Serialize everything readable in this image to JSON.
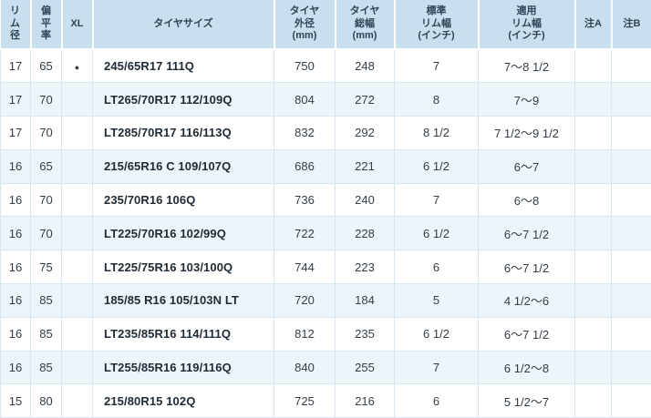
{
  "colors": {
    "header_bg": "#c8dff0",
    "stripe_bg": "#edf5fa",
    "border": "#d7e7f2",
    "header_text": "#2e4458",
    "body_text": "#333d47",
    "size_text": "#1f2a36"
  },
  "table": {
    "columns": [
      {
        "key": "rim",
        "label": "リ\nム\n径"
      },
      {
        "key": "aspect",
        "label": "偏\n平\n率"
      },
      {
        "key": "xl",
        "label": "XL"
      },
      {
        "key": "size",
        "label": "タイヤサイズ"
      },
      {
        "key": "outer_dia",
        "label": "タイヤ\n外径\n(mm)"
      },
      {
        "key": "total_width",
        "label": "タイヤ\n総幅\n(mm)"
      },
      {
        "key": "std_rim",
        "label": "標準\nリム幅\n(インチ)"
      },
      {
        "key": "app_rim",
        "label": "適用\nリム幅\n(インチ)"
      },
      {
        "key": "note_a",
        "label": "注A"
      },
      {
        "key": "note_b",
        "label": "注B"
      }
    ],
    "rows": [
      {
        "rim": "17",
        "aspect": "65",
        "xl": "●",
        "size": "245/65R17 111Q",
        "outer_dia": "750",
        "total_width": "248",
        "std_rim": "7",
        "app_rim": "7〜8 1/2",
        "note_a": "",
        "note_b": ""
      },
      {
        "rim": "17",
        "aspect": "70",
        "xl": "",
        "size": "LT265/70R17 112/109Q",
        "outer_dia": "804",
        "total_width": "272",
        "std_rim": "8",
        "app_rim": "7〜9",
        "note_a": "",
        "note_b": ""
      },
      {
        "rim": "17",
        "aspect": "70",
        "xl": "",
        "size": "LT285/70R17 116/113Q",
        "outer_dia": "832",
        "total_width": "292",
        "std_rim": "8 1/2",
        "app_rim": "7 1/2〜9 1/2",
        "note_a": "",
        "note_b": ""
      },
      {
        "rim": "16",
        "aspect": "65",
        "xl": "",
        "size": "215/65R16 C 109/107Q",
        "outer_dia": "686",
        "total_width": "221",
        "std_rim": "6 1/2",
        "app_rim": "6〜7",
        "note_a": "",
        "note_b": ""
      },
      {
        "rim": "16",
        "aspect": "70",
        "xl": "",
        "size": "235/70R16 106Q",
        "outer_dia": "736",
        "total_width": "240",
        "std_rim": "7",
        "app_rim": "6〜8",
        "note_a": "",
        "note_b": ""
      },
      {
        "rim": "16",
        "aspect": "70",
        "xl": "",
        "size": "LT225/70R16 102/99Q",
        "outer_dia": "722",
        "total_width": "228",
        "std_rim": "6 1/2",
        "app_rim": "6〜7 1/2",
        "note_a": "",
        "note_b": ""
      },
      {
        "rim": "16",
        "aspect": "75",
        "xl": "",
        "size": "LT225/75R16 103/100Q",
        "outer_dia": "744",
        "total_width": "223",
        "std_rim": "6",
        "app_rim": "6〜7 1/2",
        "note_a": "",
        "note_b": ""
      },
      {
        "rim": "16",
        "aspect": "85",
        "xl": "",
        "size": "185/85 R16 105/103N LT",
        "outer_dia": "720",
        "total_width": "184",
        "std_rim": "5",
        "app_rim": "4 1/2〜6",
        "note_a": "",
        "note_b": ""
      },
      {
        "rim": "16",
        "aspect": "85",
        "xl": "",
        "size": "LT235/85R16 114/111Q",
        "outer_dia": "812",
        "total_width": "235",
        "std_rim": "6 1/2",
        "app_rim": "6〜7 1/2",
        "note_a": "",
        "note_b": ""
      },
      {
        "rim": "16",
        "aspect": "85",
        "xl": "",
        "size": "LT255/85R16 119/116Q",
        "outer_dia": "840",
        "total_width": "255",
        "std_rim": "7",
        "app_rim": "6 1/2〜8",
        "note_a": "",
        "note_b": ""
      },
      {
        "rim": "15",
        "aspect": "80",
        "xl": "",
        "size": "215/80R15 102Q",
        "outer_dia": "725",
        "total_width": "216",
        "std_rim": "6",
        "app_rim": "5 1/2〜7",
        "note_a": "",
        "note_b": ""
      }
    ]
  }
}
